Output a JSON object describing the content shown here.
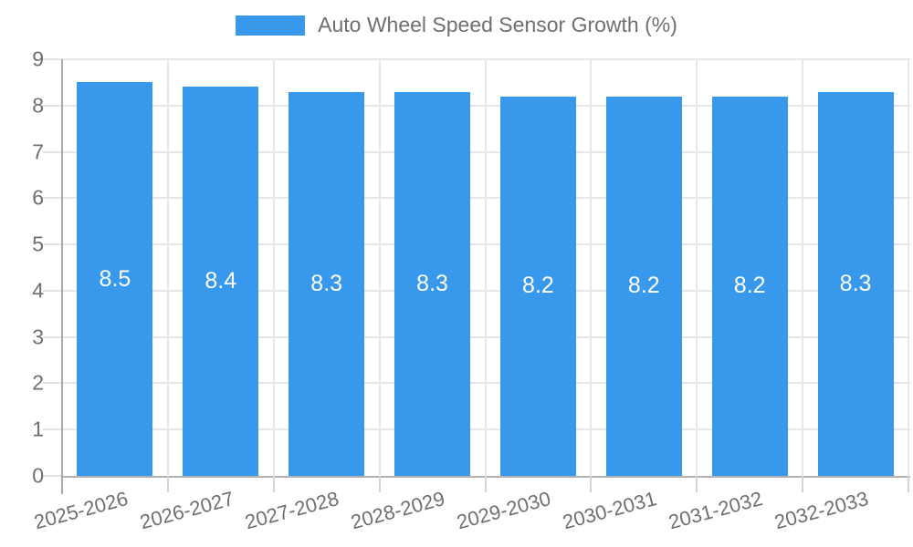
{
  "legend": {
    "label": "Auto Wheel Speed Sensor Growth (%)"
  },
  "chart_data": {
    "type": "bar",
    "title": "Auto Wheel Speed Sensor Growth (%)",
    "categories": [
      "2025-2026",
      "2026-2027",
      "2027-2028",
      "2028-2029",
      "2029-2030",
      "2030-2031",
      "2031-2032",
      "2032-2033"
    ],
    "values": [
      8.5,
      8.4,
      8.3,
      8.3,
      8.2,
      8.2,
      8.2,
      8.3
    ],
    "value_labels": [
      "8.5",
      "8.4",
      "8.3",
      "8.3",
      "8.2",
      "8.2",
      "8.2",
      "8.3"
    ],
    "xlabel": "",
    "ylabel": "",
    "ylim": [
      0,
      9
    ],
    "yticks": [
      0,
      1,
      2,
      3,
      4,
      5,
      6,
      7,
      8,
      9
    ],
    "grid": true,
    "legend_position": "top",
    "bar_color": "#3898ec",
    "value_label_color": "#ffffff",
    "axis_text_color": "#6f6f6f",
    "grid_line_color": "#e6e6e6",
    "axis_line_color": "#a9a9a9"
  }
}
